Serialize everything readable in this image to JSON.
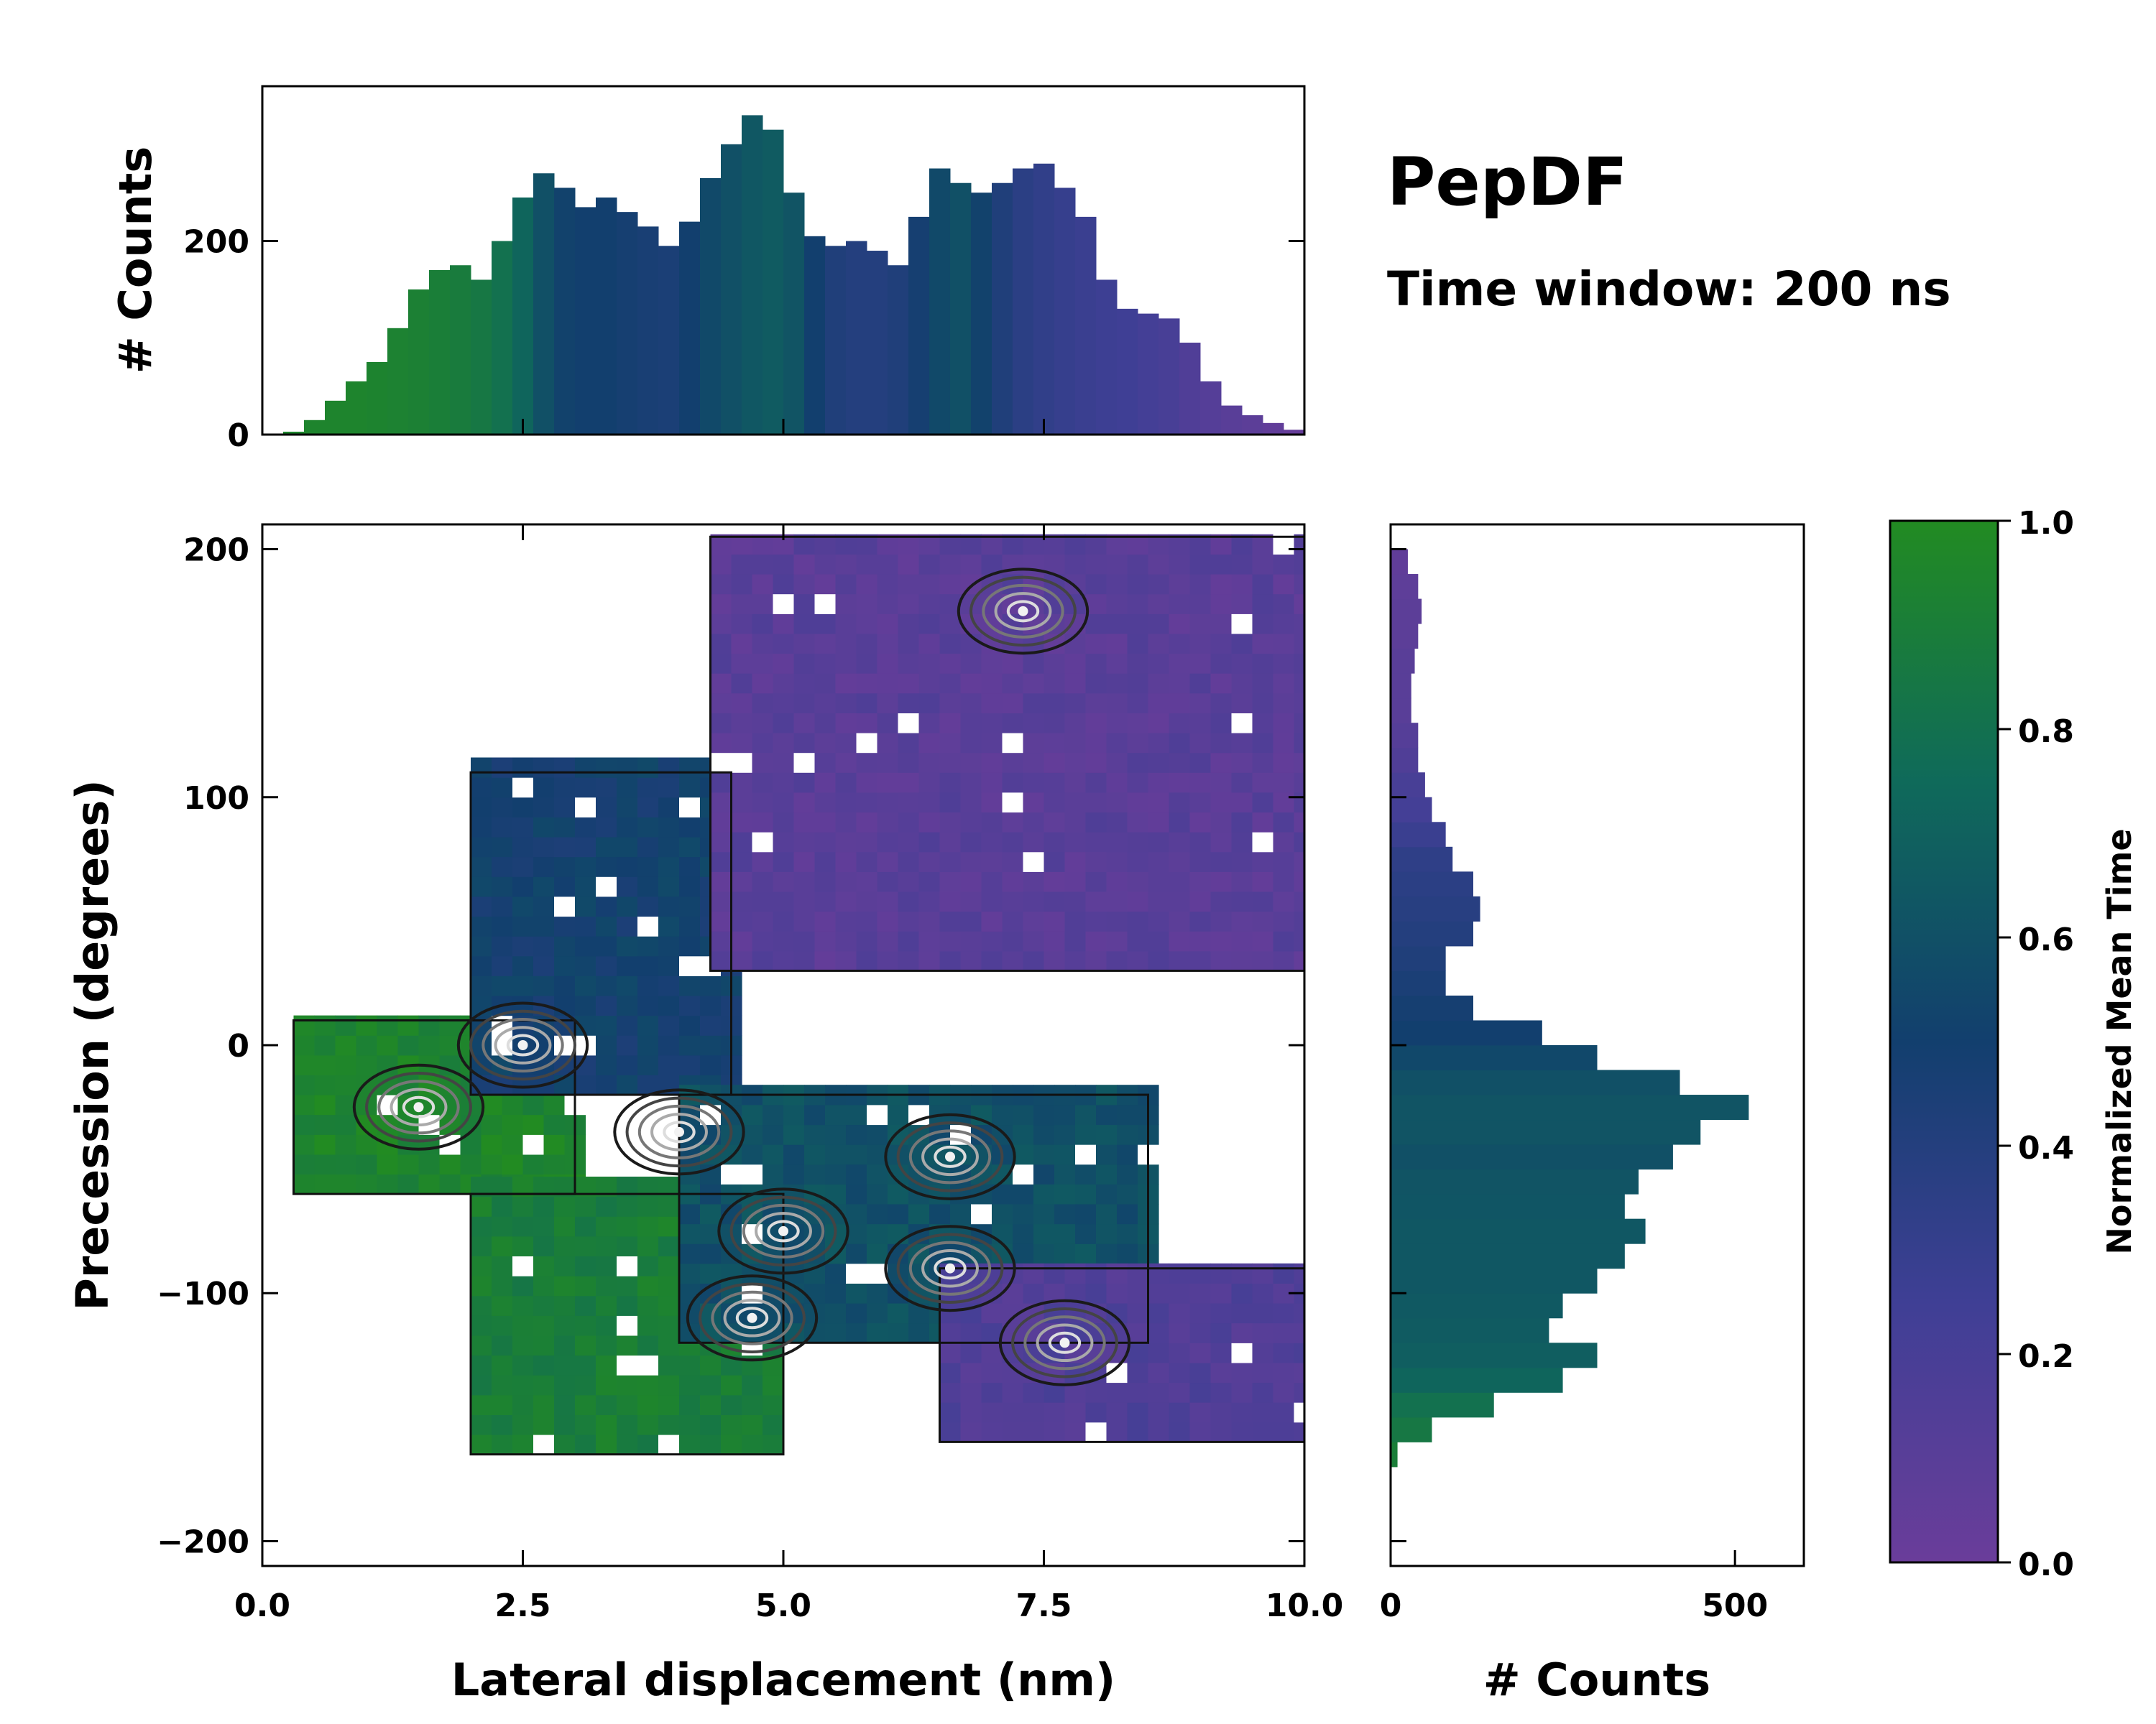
{
  "figure": {
    "title": "PepDF",
    "subtitle": "Time window: 200 ns"
  },
  "chart_data": [
    {
      "id": "joint",
      "type": "heatmap",
      "description": "2D histogram colored by normalized mean time with density contours",
      "xlabel": "Lateral displacement (nm)",
      "ylabel": "Precession (degrees)",
      "xlim": [
        0,
        10
      ],
      "ylim": [
        -210,
        210
      ],
      "xticks": [
        0.0,
        2.5,
        5.0,
        7.5,
        10.0
      ],
      "xtick_labels": [
        "0.0",
        "2.5",
        "5.0",
        "7.5",
        "10.0"
      ],
      "yticks": [
        -200,
        -100,
        0,
        100,
        200
      ],
      "ytick_labels": [
        "−200",
        "−100",
        "0",
        "100",
        "200"
      ],
      "regions": [
        {
          "label": "early (green)",
          "x": [
            0.3,
            3.0
          ],
          "y": [
            -60,
            10
          ],
          "mean_time": 0.95
        },
        {
          "label": "early-mid",
          "x": [
            2.0,
            5.0
          ],
          "y": [
            -165,
            -60
          ],
          "mean_time": 0.9
        },
        {
          "label": "mid (blue)",
          "x": [
            2.0,
            4.5
          ],
          "y": [
            -20,
            110
          ],
          "mean_time": 0.5
        },
        {
          "label": "mid (teal)",
          "x": [
            4.0,
            8.5
          ],
          "y": [
            -120,
            -20
          ],
          "mean_time": 0.6
        },
        {
          "label": "late (purple)",
          "x": [
            4.3,
            10.0
          ],
          "y": [
            30,
            205
          ],
          "mean_time": 0.1
        },
        {
          "label": "late (purple)",
          "x": [
            6.5,
            10.0
          ],
          "y": [
            -160,
            -90
          ],
          "mean_time": 0.15
        }
      ],
      "contour_peaks": [
        {
          "x": 1.5,
          "y": -25
        },
        {
          "x": 2.5,
          "y": 0
        },
        {
          "x": 4.0,
          "y": -35
        },
        {
          "x": 5.0,
          "y": -75
        },
        {
          "x": 6.6,
          "y": -45
        },
        {
          "x": 6.6,
          "y": -90
        },
        {
          "x": 4.7,
          "y": -110
        },
        {
          "x": 7.7,
          "y": -120
        },
        {
          "x": 7.3,
          "y": 175
        }
      ]
    },
    {
      "id": "top_hist",
      "type": "bar",
      "description": "Marginal histogram of lateral displacement, bars colored by mean time",
      "ylabel": "# Counts",
      "xlim": [
        0,
        10
      ],
      "ylim": [
        0,
        360
      ],
      "yticks": [
        0,
        200
      ],
      "ytick_labels": [
        "0",
        "200"
      ],
      "x": [
        0.3,
        0.5,
        0.7,
        0.9,
        1.1,
        1.3,
        1.5,
        1.7,
        1.9,
        2.1,
        2.3,
        2.5,
        2.7,
        2.9,
        3.1,
        3.3,
        3.5,
        3.7,
        3.9,
        4.1,
        4.3,
        4.5,
        4.7,
        4.9,
        5.1,
        5.3,
        5.5,
        5.7,
        5.9,
        6.1,
        6.3,
        6.5,
        6.7,
        6.9,
        7.1,
        7.3,
        7.5,
        7.7,
        7.9,
        8.1,
        8.3,
        8.5,
        8.7,
        8.9,
        9.1,
        9.3,
        9.5,
        9.7,
        9.9
      ],
      "values": [
        3,
        15,
        35,
        55,
        75,
        110,
        150,
        170,
        175,
        160,
        200,
        245,
        270,
        255,
        235,
        245,
        230,
        215,
        195,
        220,
        265,
        300,
        330,
        315,
        250,
        205,
        195,
        200,
        190,
        175,
        225,
        275,
        260,
        250,
        260,
        275,
        280,
        255,
        225,
        160,
        130,
        125,
        120,
        95,
        55,
        30,
        20,
        12,
        5
      ],
      "mean_time": [
        0.95,
        0.95,
        0.95,
        0.95,
        0.94,
        0.93,
        0.92,
        0.9,
        0.88,
        0.85,
        0.8,
        0.72,
        0.6,
        0.52,
        0.5,
        0.5,
        0.48,
        0.46,
        0.45,
        0.5,
        0.56,
        0.6,
        0.64,
        0.66,
        0.62,
        0.5,
        0.42,
        0.4,
        0.4,
        0.42,
        0.48,
        0.56,
        0.6,
        0.52,
        0.42,
        0.36,
        0.33,
        0.3,
        0.28,
        0.26,
        0.25,
        0.22,
        0.2,
        0.15,
        0.12,
        0.1,
        0.08,
        0.05,
        0.03
      ]
    },
    {
      "id": "right_hist",
      "type": "bar",
      "orientation": "horizontal",
      "description": "Marginal histogram of precession, bars colored by mean time",
      "xlabel": "# Counts",
      "xlim": [
        0,
        600
      ],
      "xticks": [
        0,
        500
      ],
      "xtick_labels": [
        "0",
        "500"
      ],
      "ylim": [
        -210,
        210
      ],
      "y": [
        -165,
        -155,
        -145,
        -135,
        -125,
        -115,
        -105,
        -95,
        -85,
        -75,
        -65,
        -55,
        -45,
        -35,
        -25,
        -15,
        -5,
        5,
        15,
        25,
        35,
        45,
        55,
        65,
        75,
        85,
        95,
        105,
        115,
        125,
        135,
        145,
        155,
        165,
        175,
        185,
        195
      ],
      "values": [
        10,
        60,
        150,
        250,
        300,
        230,
        250,
        300,
        340,
        370,
        340,
        360,
        410,
        450,
        520,
        420,
        300,
        220,
        120,
        80,
        80,
        120,
        130,
        120,
        90,
        80,
        60,
        50,
        40,
        40,
        30,
        30,
        35,
        40,
        45,
        40,
        25
      ],
      "mean_time": [
        0.9,
        0.85,
        0.8,
        0.72,
        0.68,
        0.66,
        0.65,
        0.64,
        0.64,
        0.64,
        0.63,
        0.62,
        0.6,
        0.62,
        0.62,
        0.6,
        0.55,
        0.5,
        0.48,
        0.45,
        0.42,
        0.4,
        0.38,
        0.36,
        0.34,
        0.28,
        0.22,
        0.2,
        0.15,
        0.12,
        0.1,
        0.1,
        0.1,
        0.08,
        0.08,
        0.07,
        0.06
      ]
    },
    {
      "id": "colorbar",
      "type": "colorbar",
      "label": "Normalized Mean Time",
      "range": [
        0.0,
        1.0
      ],
      "ticks": [
        0.0,
        0.2,
        0.4,
        0.6,
        0.8,
        1.0
      ],
      "tick_labels": [
        "0.0",
        "0.2",
        "0.4",
        "0.6",
        "0.8",
        "1.0"
      ],
      "colormap": [
        {
          "t": 0.0,
          "color": "#6a3d9a"
        },
        {
          "t": 0.25,
          "color": "#3f3f95"
        },
        {
          "t": 0.5,
          "color": "#123f6e"
        },
        {
          "t": 0.75,
          "color": "#0f6a5a"
        },
        {
          "t": 1.0,
          "color": "#228b22"
        }
      ]
    }
  ]
}
